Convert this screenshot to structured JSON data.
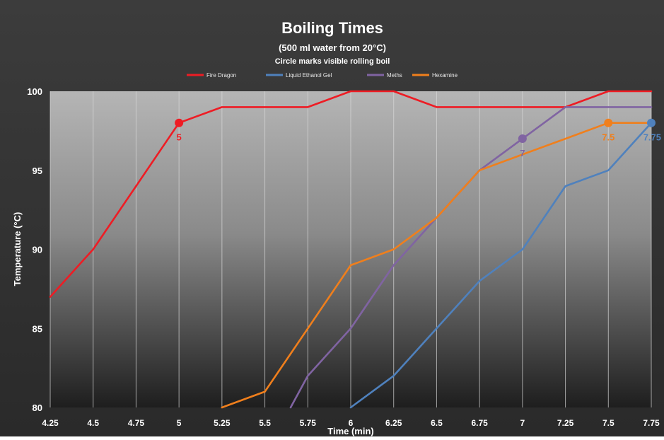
{
  "chart_data": {
    "type": "line",
    "title": "Boiling Times",
    "subtitle": "(500 ml water from 20°C)",
    "subtitle2": "Circle marks visible rolling boil",
    "xlabel": "Time (min)",
    "ylabel": "Temperature (°C)",
    "xlim": [
      4.25,
      7.75
    ],
    "ylim": [
      80,
      100
    ],
    "x_ticks": [
      "4.25",
      "4.5",
      "4.75",
      "5",
      "5.25",
      "5.5",
      "5.75",
      "6",
      "6.25",
      "6.5",
      "6.75",
      "7",
      "7.25",
      "7.5",
      "7.75"
    ],
    "y_ticks": [
      "80",
      "85",
      "90",
      "95",
      "100"
    ],
    "grid": "vertical",
    "legend_position": "top",
    "series": [
      {
        "name": "Fire Dragon",
        "color": "#ee1c24",
        "points": [
          [
            4.25,
            87
          ],
          [
            4.5,
            90
          ],
          [
            4.75,
            94
          ],
          [
            5,
            98
          ],
          [
            5.25,
            99
          ],
          [
            5.5,
            99
          ],
          [
            5.75,
            99
          ],
          [
            6,
            100
          ],
          [
            6.25,
            100
          ],
          [
            6.5,
            99
          ],
          [
            6.75,
            99
          ],
          [
            7,
            99
          ],
          [
            7.25,
            99
          ],
          [
            7.5,
            100
          ],
          [
            7.75,
            100
          ]
        ],
        "boil_marker": {
          "x": 5,
          "y": 98,
          "label": "5"
        }
      },
      {
        "name": "Liquid Ethanol Gel",
        "color": "#4f81bd",
        "points": [
          [
            6,
            80
          ],
          [
            6.25,
            82
          ],
          [
            6.5,
            85
          ],
          [
            6.75,
            88
          ],
          [
            7,
            90
          ],
          [
            7.25,
            94
          ],
          [
            7.5,
            95
          ],
          [
            7.75,
            98
          ]
        ],
        "boil_marker": {
          "x": 7.75,
          "y": 98,
          "label": "7.75"
        }
      },
      {
        "name": "Meths",
        "color": "#8064a2",
        "points": [
          [
            5.65,
            80
          ],
          [
            5.75,
            82
          ],
          [
            6,
            85
          ],
          [
            6.25,
            89
          ],
          [
            6.5,
            92
          ],
          [
            6.75,
            95
          ],
          [
            7,
            97
          ],
          [
            7.25,
            99
          ],
          [
            7.5,
            99
          ],
          [
            7.75,
            99
          ]
        ],
        "boil_marker": {
          "x": 7,
          "y": 97,
          "label": "7"
        }
      },
      {
        "name": "Hexamine",
        "color": "#f07f1c",
        "points": [
          [
            5.25,
            80
          ],
          [
            5.5,
            81
          ],
          [
            5.75,
            85
          ],
          [
            6,
            89
          ],
          [
            6.25,
            90
          ],
          [
            6.5,
            92
          ],
          [
            6.75,
            95
          ],
          [
            7,
            96
          ],
          [
            7.25,
            97
          ],
          [
            7.5,
            98
          ],
          [
            7.75,
            98
          ]
        ],
        "boil_marker": {
          "x": 7.5,
          "y": 98,
          "label": "7.5"
        }
      }
    ]
  }
}
